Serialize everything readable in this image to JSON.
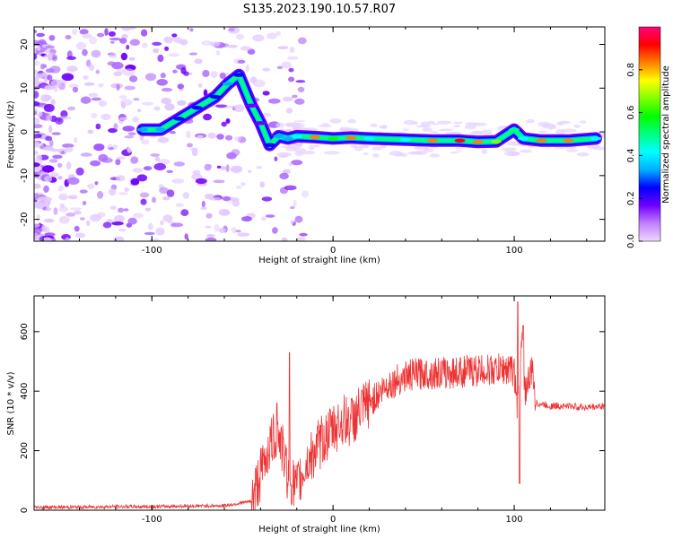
{
  "title": "S135.2023.190.10.57.R07",
  "chart_data": [
    {
      "type": "heatmap",
      "xlabel": "Height of straight line (km)",
      "ylabel": "Frequency (Hz)",
      "xlim": [
        -165,
        150
      ],
      "ylim": [
        -25,
        24
      ],
      "x_ticks": [
        -100,
        0,
        100
      ],
      "y_ticks": [
        -20,
        -10,
        0,
        10,
        20
      ],
      "colorbar": {
        "label": "Normalized spectral amplitude",
        "range": [
          0,
          1
        ],
        "ticks": [
          "0.0",
          "0.2",
          "0.4",
          "0.6",
          "0.8"
        ],
        "colors": [
          "#f0d8ff",
          "#c080ff",
          "#7000ff",
          "#0000ff",
          "#00b0ff",
          "#00ffff",
          "#00ff80",
          "#00ff00",
          "#80ff00",
          "#ffff00",
          "#ff8000",
          "#ff0000",
          "#ff0080"
        ]
      },
      "ridge": [
        {
          "x": -105,
          "y": 0.5,
          "amp": 0.3
        },
        {
          "x": -95,
          "y": 0.5,
          "amp": 0.3
        },
        {
          "x": -85,
          "y": 3,
          "amp": 0.25
        },
        {
          "x": -75,
          "y": 5.5,
          "amp": 0.25
        },
        {
          "x": -65,
          "y": 8,
          "amp": 0.25
        },
        {
          "x": -58,
          "y": 11,
          "amp": 0.3
        },
        {
          "x": -52,
          "y": 13,
          "amp": 0.25
        },
        {
          "x": -45,
          "y": 6,
          "amp": 0.2
        },
        {
          "x": -40,
          "y": 2,
          "amp": 0.2
        },
        {
          "x": -35,
          "y": -3,
          "amp": 0.25
        },
        {
          "x": -30,
          "y": -1,
          "amp": 0.3
        },
        {
          "x": -25,
          "y": -1.5,
          "amp": 0.3
        },
        {
          "x": -20,
          "y": -1,
          "amp": 0.45
        },
        {
          "x": -10,
          "y": -1.2,
          "amp": 0.85
        },
        {
          "x": 0,
          "y": -1.5,
          "amp": 0.55
        },
        {
          "x": 10,
          "y": -1.3,
          "amp": 0.8
        },
        {
          "x": 20,
          "y": -1.5,
          "amp": 0.4
        },
        {
          "x": 40,
          "y": -1.8,
          "amp": 0.45
        },
        {
          "x": 55,
          "y": -2,
          "amp": 0.85
        },
        {
          "x": 70,
          "y": -2,
          "amp": 0.9
        },
        {
          "x": 80,
          "y": -2.3,
          "amp": 0.8
        },
        {
          "x": 90,
          "y": -2.2,
          "amp": 0.7
        },
        {
          "x": 100,
          "y": 0.5,
          "amp": 0.5
        },
        {
          "x": 105,
          "y": -1.5,
          "amp": 0.4
        },
        {
          "x": 115,
          "y": -2,
          "amp": 0.85
        },
        {
          "x": 130,
          "y": -2,
          "amp": 0.8
        },
        {
          "x": 145,
          "y": -1.5,
          "amp": 0.4
        }
      ]
    },
    {
      "type": "line",
      "xlabel": "Height of straight line (km)",
      "ylabel": "SNR (10 * v/v)",
      "xlim": [
        -165,
        150
      ],
      "ylim": [
        0,
        720
      ],
      "x_ticks": [
        -100,
        0,
        100
      ],
      "y_ticks": [
        0,
        200,
        400,
        600
      ],
      "color": "#ee3333",
      "x": [
        -165,
        -140,
        -120,
        -100,
        -80,
        -60,
        -45,
        -40,
        -35,
        -30,
        -25,
        -20,
        -15,
        -10,
        -5,
        0,
        5,
        10,
        20,
        30,
        40,
        50,
        60,
        70,
        80,
        90,
        95,
        100,
        102,
        104,
        106,
        110,
        112,
        120,
        130,
        140,
        150
      ],
      "y": [
        10,
        10,
        12,
        12,
        14,
        15,
        30,
        120,
        220,
        260,
        120,
        70,
        150,
        200,
        240,
        270,
        300,
        300,
        360,
        420,
        450,
        460,
        460,
        465,
        470,
        470,
        475,
        470,
        300,
        600,
        400,
        470,
        360,
        350,
        350,
        345,
        350
      ],
      "peaks": [
        {
          "x": -31,
          "y": 360
        },
        {
          "x": -24,
          "y": 530
        },
        {
          "x": -20,
          "y": 75
        },
        {
          "x": 102,
          "y": 700
        },
        {
          "x": 103,
          "y": 90
        },
        {
          "x": 105,
          "y": 620
        }
      ]
    }
  ]
}
